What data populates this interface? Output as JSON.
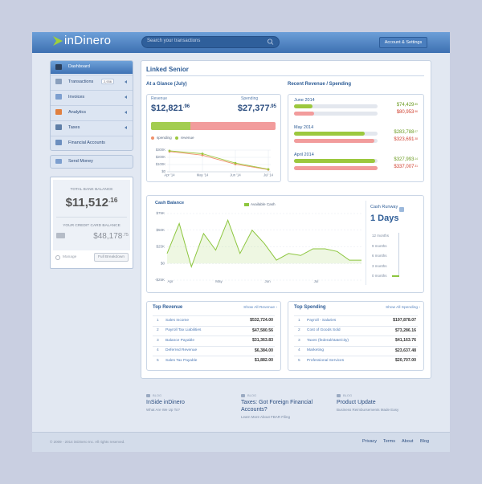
{
  "header": {
    "logo": "inDinero",
    "search_placeholder": "Search your transactions",
    "account_button": "Account & Settings"
  },
  "sidebar": {
    "nav": [
      {
        "label": "Dashboard"
      },
      {
        "label": "Transactions",
        "badge": "2,936"
      },
      {
        "label": "Invoices"
      },
      {
        "label": "Analytics"
      },
      {
        "label": "Taxes"
      },
      {
        "label": "Financial Accounts"
      }
    ],
    "send_money": "Send Money",
    "bank_balance": {
      "label": "TOTAL BANK BALANCE",
      "amount": "$11,512",
      "cents": ".16"
    },
    "credit_balance": {
      "label": "YOUR CREDIT CARD BALANCE",
      "amount": "$48,178",
      "cents": ".75"
    },
    "manage": "Manage",
    "breakdown_button": "Full Breakdown"
  },
  "content": {
    "title": "Linked Senior",
    "glance": {
      "title": "At a Glance (July)",
      "revenue_label": "Revenue",
      "revenue": {
        "value": 12821.96,
        "label": "$12,821",
        "cents": ".96"
      },
      "spending_label": "Spending",
      "spending": {
        "value": 27377.95,
        "label": "$27,377",
        "cents": ".95"
      },
      "chart": {
        "type": "line",
        "categories": [
          "Apr '14",
          "May '14",
          "Jun '14",
          "Jul '14"
        ],
        "series": [
          {
            "name": "spending",
            "color": "#f0906a",
            "values": [
              280,
              230,
              105,
              30
            ]
          },
          {
            "name": "revenue",
            "color": "#9cc83e",
            "values": [
              290,
              250,
              120,
              35
            ]
          }
        ],
        "ylim": [
          0,
          300
        ],
        "yticks": [
          {
            "value": 300,
            "label": "$300K"
          },
          {
            "value": 200,
            "label": "$200K"
          },
          {
            "value": 100,
            "label": "$100K"
          },
          {
            "value": 0,
            "label": "$0"
          }
        ]
      }
    },
    "recent": {
      "title": "Recent Revenue / Spending",
      "months": [
        {
          "month": "June 2014",
          "revenue": {
            "value": 74429.85,
            "label": "$74,429",
            "cents": ".85"
          },
          "spending": {
            "value": 80953.56,
            "label": "$80,953",
            "cents": ".56"
          }
        },
        {
          "month": "May 2014",
          "revenue": {
            "value": 283788.07,
            "label": "$283,788",
            "cents": ".07"
          },
          "spending": {
            "value": 323691.38,
            "label": "$323,691",
            "cents": ".38"
          }
        },
        {
          "month": "April 2014",
          "revenue": {
            "value": 327993.14,
            "label": "$327,993",
            "cents": ".14"
          },
          "spending": {
            "value": 337007.31,
            "label": "$337,007",
            "cents": ".31"
          }
        }
      ]
    },
    "cash": {
      "title": "Cash Balance",
      "chart": {
        "type": "area",
        "series": [
          {
            "name": "Available Cash",
            "color": "#8dc63f",
            "values": [
              15,
              60,
              -5,
              45,
              20,
              65,
              15,
              50,
              30,
              5,
              15,
              12,
              22,
              22,
              18,
              5,
              5
            ]
          }
        ],
        "xlabels": [
          "Apr",
          "May",
          "Jun",
          "Jul"
        ],
        "ylim": [
          -25,
          75
        ],
        "yticks": [
          {
            "value": 75,
            "label": "$75K"
          },
          {
            "value": 50,
            "label": "$50K"
          },
          {
            "value": 25,
            "label": "$25K"
          },
          {
            "value": 0,
            "label": "$0"
          },
          {
            "value": -25,
            "label": "-$25K"
          }
        ],
        "grid": true
      },
      "runway": {
        "title": "Cash Runway",
        "value": "1 Days",
        "ticks": [
          "12 months",
          "9 months",
          "6 months",
          "3 months",
          "0 months"
        ]
      }
    },
    "top_revenue": {
      "title": "Top Revenue",
      "link": "Show All Revenue ›",
      "rows": [
        [
          "1",
          "Sales Income",
          "$532,724.00"
        ],
        [
          "2",
          "Payroll Tax Liabilities",
          "$47,580.56"
        ],
        [
          "3",
          "Balance Payable",
          "$31,363.83"
        ],
        [
          "4",
          "Deferred Revenue",
          "$6,384.00"
        ],
        [
          "5",
          "Sales Tax Payable",
          "$1,882.00"
        ]
      ]
    },
    "top_spending": {
      "title": "Top Spending",
      "link": "Show All Spending ›",
      "rows": [
        [
          "1",
          "Payroll - Salaries",
          "$197,878.07"
        ],
        [
          "2",
          "Cost of Goods Sold",
          "$73,286.16"
        ],
        [
          "3",
          "Taxes (federal/state/city)",
          "$41,163.76"
        ],
        [
          "4",
          "Marketing",
          "$23,637.48"
        ],
        [
          "5",
          "Professional Services",
          "$20,707.00"
        ]
      ]
    }
  },
  "blog": [
    {
      "tag": "BLOG",
      "title": "InSide inDinero",
      "subtitle": "What Are We Up To?"
    },
    {
      "tag": "BLOG",
      "title": "Taxes: Got Foreign Financial Accounts?",
      "subtitle": "Learn More About FBAR Filing"
    },
    {
      "tag": "BLOG",
      "title": "Product Update",
      "subtitle": "Business Reimbursements Made Easy"
    }
  ],
  "footer": {
    "copyright": "© 2009 - 2014 inDinero Inc. All rights reserved.",
    "links": [
      "Privacy",
      "Terms",
      "About",
      "Blog"
    ]
  }
}
